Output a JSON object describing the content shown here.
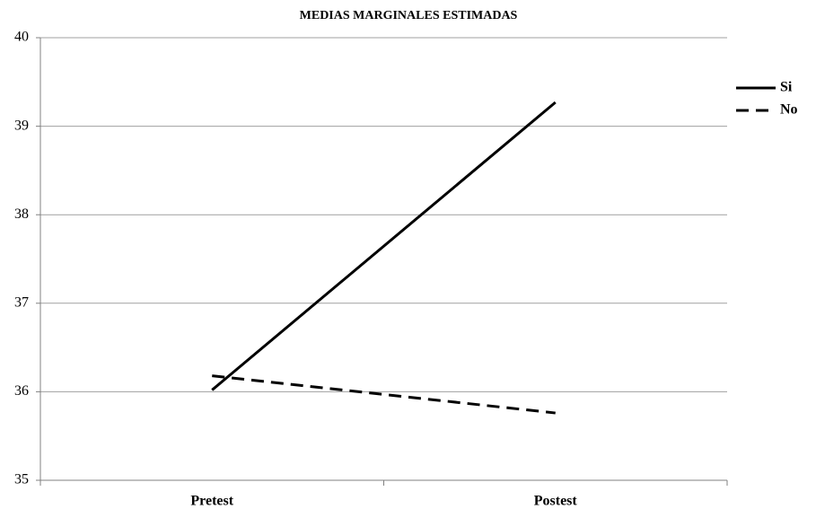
{
  "chart_data": {
    "type": "line",
    "title": "MEDIAS MARGINALES ESTIMADAS",
    "categories": [
      "Pretest",
      "Postest"
    ],
    "series": [
      {
        "name": "Si",
        "color": "#000000",
        "dash": "solid",
        "values": [
          36.02,
          39.27
        ]
      },
      {
        "name": "No",
        "color": "#000000",
        "dash": "dashed",
        "values": [
          36.18,
          35.76
        ]
      }
    ],
    "ylim": [
      35,
      40
    ],
    "yticks": [
      35,
      36,
      37,
      38,
      39,
      40
    ],
    "grid": true
  }
}
